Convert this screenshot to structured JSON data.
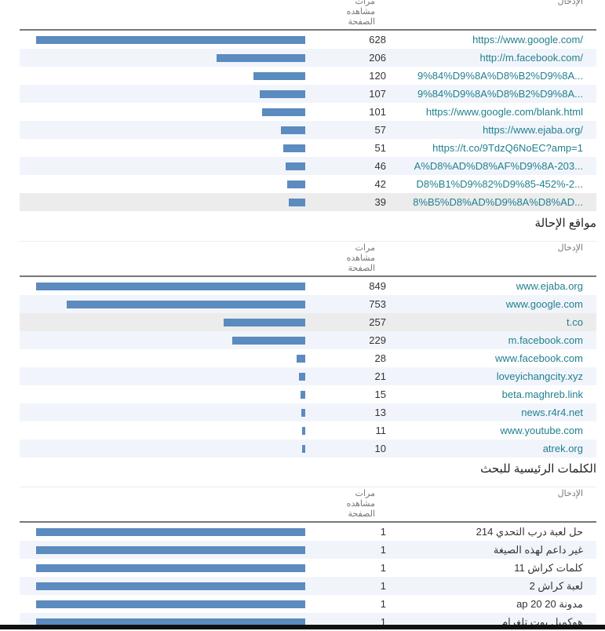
{
  "columns": {
    "entry": "الإدخال",
    "views": "مرات مشاهده الصفحة"
  },
  "colors": {
    "bar": "#5b8bbf",
    "link": "#21808f"
  },
  "sections": [
    {
      "title": "",
      "link": true,
      "rows": [
        {
          "entry": "/https://www.google.com",
          "views": 628
        },
        {
          "entry": "/http://m.facebook.com",
          "views": 206
        },
        {
          "entry": "...9%84%D9%8A%D8%B2%D9%8A",
          "views": 120
        },
        {
          "entry": "...9%84%D9%8A%D8%B2%D9%8A",
          "views": 107
        },
        {
          "entry": "https://www.google.com/blank.html",
          "views": 101
        },
        {
          "entry": "/https://www.ejaba.org",
          "views": 57
        },
        {
          "entry": "https://t.co/9TdzQ6NoEC?amp=1",
          "views": 51
        },
        {
          "entry": "...A%D8%AD%D8%AF%D9%8A-203",
          "views": 46
        },
        {
          "entry": "...2-%D8%B1%D9%82%D9%85-452",
          "views": 42
        },
        {
          "entry": "...8%B5%D8%AD%D9%8A%D8%AD",
          "views": 39
        }
      ],
      "highlight": 9
    },
    {
      "title": "مواقع الإحالة",
      "link": true,
      "rows": [
        {
          "entry": "www.ejaba.org",
          "views": 849
        },
        {
          "entry": "www.google.com",
          "views": 753
        },
        {
          "entry": "t.co",
          "views": 257
        },
        {
          "entry": "m.facebook.com",
          "views": 229
        },
        {
          "entry": "www.facebook.com",
          "views": 28
        },
        {
          "entry": "loveyichangcity.xyz",
          "views": 21
        },
        {
          "entry": "beta.maghreb.link",
          "views": 15
        },
        {
          "entry": "news.r4r4.net",
          "views": 13
        },
        {
          "entry": "www.youtube.com",
          "views": 11
        },
        {
          "entry": "atrek.org",
          "views": 10
        }
      ],
      "highlight": 2
    },
    {
      "title": "الكلمات الرئيسية للبحث",
      "link": false,
      "rows": [
        {
          "entry": "حل لعبة درب التحدي 214",
          "views": 1
        },
        {
          "entry": "غير داعم لهذه الصيغة",
          "views": 1
        },
        {
          "entry": "كلمات كراش 11",
          "views": 1
        },
        {
          "entry": "لعبة كراش 2",
          "views": 1
        },
        {
          "entry": "مدونة 20 20 ap",
          "views": 1
        },
        {
          "entry": "هوكميل بوت تلغرام",
          "views": 1
        }
      ],
      "highlight": -1
    }
  ]
}
